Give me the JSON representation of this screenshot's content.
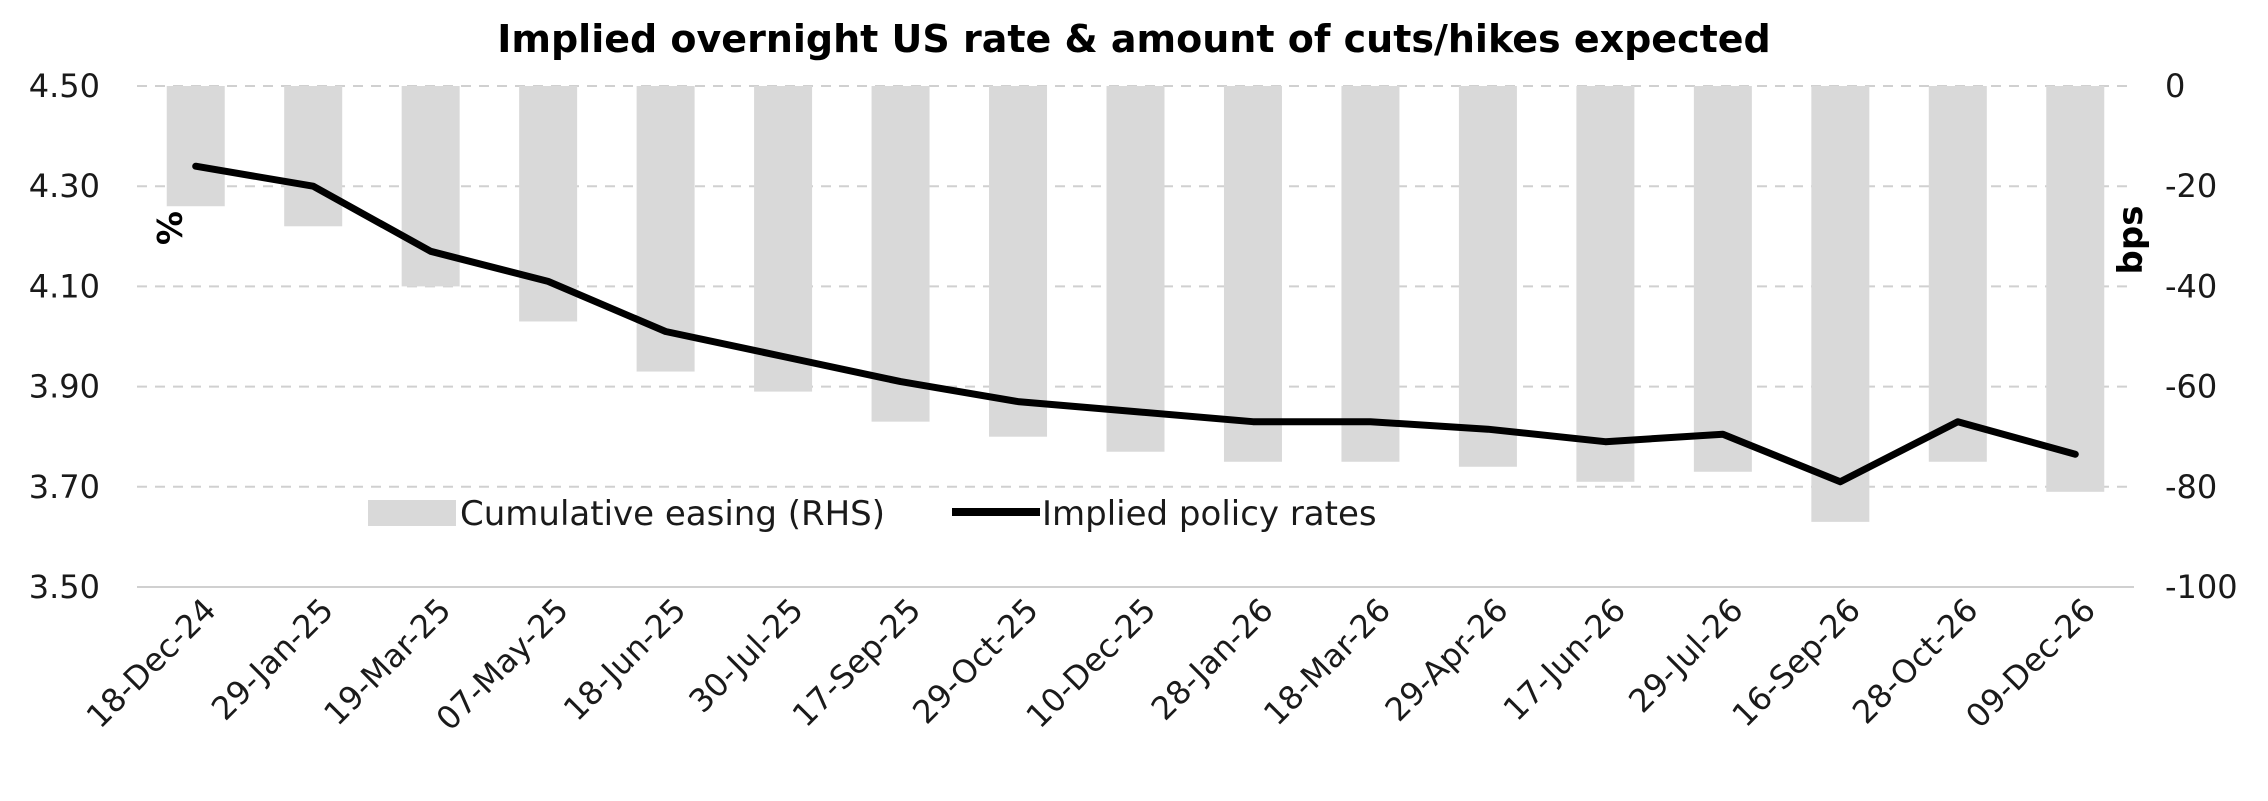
{
  "chart_data": {
    "type": "bar+line",
    "title": "Implied overnight US rate & amount of cuts/hikes expected",
    "ylabel_left": "%",
    "ylabel_right": "bps",
    "categories": [
      "18-Dec-24",
      "29-Jan-25",
      "19-Mar-25",
      "07-May-25",
      "18-Jun-25",
      "30-Jul-25",
      "17-Sep-25",
      "29-Oct-25",
      "10-Dec-25",
      "28-Jan-26",
      "18-Mar-26",
      "29-Apr-26",
      "17-Jun-26",
      "29-Jul-26",
      "16-Sep-26",
      "28-Oct-26",
      "09-Dec-26"
    ],
    "y_left": {
      "min": 3.5,
      "max": 4.5,
      "ticks": [
        "4.50",
        "4.30",
        "4.10",
        "3.90",
        "3.70",
        "3.50"
      ]
    },
    "y_right": {
      "min": -100,
      "max": 0,
      "ticks": [
        "0",
        "-20",
        "-40",
        "-60",
        "-80",
        "-100"
      ]
    },
    "grid": "horizontal dashed",
    "legend_position": "bottom-left inside",
    "series": [
      {
        "name": "Cumulative easing (RHS)",
        "kind": "bar",
        "axis": "right",
        "color": "#d9d9d9",
        "values": [
          -24,
          -28,
          -40,
          -47,
          -57,
          -61,
          -67,
          -70,
          -73,
          -75,
          -75,
          -76,
          -79,
          -77,
          -87,
          -75,
          -81
        ]
      },
      {
        "name": "Implied policy rates",
        "kind": "line",
        "axis": "left",
        "color": "#000000",
        "values": [
          4.34,
          4.3,
          4.17,
          4.11,
          4.01,
          3.96,
          3.91,
          3.87,
          3.85,
          3.83,
          3.83,
          3.815,
          3.79,
          3.805,
          3.71,
          3.83,
          3.765
        ]
      }
    ]
  }
}
